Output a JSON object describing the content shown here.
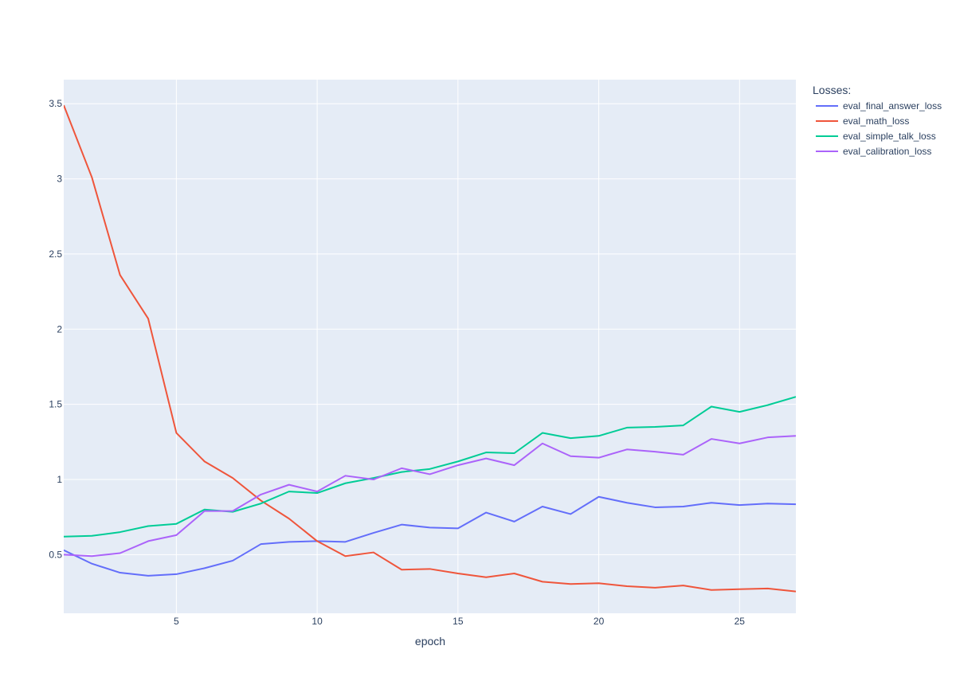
{
  "chart_data": {
    "type": "line",
    "title": "",
    "xlabel": "epoch",
    "ylabel": "",
    "legend_title": "Losses:",
    "legend_position": "right",
    "grid": true,
    "xlim": [
      1,
      27
    ],
    "ylim": [
      0.11,
      3.66
    ],
    "x_ticks": [
      5,
      10,
      15,
      20,
      25
    ],
    "x_tick_labels": [
      "5",
      "10",
      "15",
      "20",
      "25"
    ],
    "y_ticks": [
      0.5,
      1,
      1.5,
      2,
      2.5,
      3,
      3.5
    ],
    "y_tick_labels": [
      "0.5",
      "1",
      "1.5",
      "2",
      "2.5",
      "3",
      "3.5"
    ],
    "x": [
      1,
      2,
      3,
      4,
      5,
      6,
      7,
      8,
      9,
      10,
      11,
      12,
      13,
      14,
      15,
      16,
      17,
      18,
      19,
      20,
      21,
      22,
      23,
      24,
      25,
      26,
      27
    ],
    "series": [
      {
        "name": "eval_final_answer_loss",
        "color": "#636efa",
        "values": [
          0.53,
          0.44,
          0.38,
          0.36,
          0.37,
          0.41,
          0.46,
          0.57,
          0.585,
          0.59,
          0.585,
          0.645,
          0.7,
          0.68,
          0.675,
          0.78,
          0.72,
          0.82,
          0.77,
          0.885,
          0.845,
          0.815,
          0.82,
          0.845,
          0.83,
          0.84,
          0.835
        ]
      },
      {
        "name": "eval_math_loss",
        "color": "#ef553b",
        "values": [
          3.49,
          3.01,
          2.36,
          2.07,
          1.31,
          1.12,
          1.01,
          0.86,
          0.74,
          0.59,
          0.49,
          0.515,
          0.4,
          0.405,
          0.375,
          0.35,
          0.375,
          0.32,
          0.305,
          0.31,
          0.29,
          0.28,
          0.295,
          0.265,
          0.27,
          0.275,
          0.255
        ]
      },
      {
        "name": "eval_simple_talk_loss",
        "color": "#00cc96",
        "values": [
          0.62,
          0.625,
          0.65,
          0.69,
          0.705,
          0.8,
          0.785,
          0.84,
          0.92,
          0.91,
          0.975,
          1.01,
          1.05,
          1.07,
          1.12,
          1.18,
          1.175,
          1.31,
          1.275,
          1.29,
          1.345,
          1.35,
          1.36,
          1.485,
          1.45,
          1.495,
          1.55
        ]
      },
      {
        "name": "eval_calibration_loss",
        "color": "#ab63fa",
        "values": [
          0.5,
          0.49,
          0.51,
          0.59,
          0.63,
          0.79,
          0.79,
          0.9,
          0.965,
          0.92,
          1.025,
          1.0,
          1.075,
          1.035,
          1.095,
          1.14,
          1.095,
          1.24,
          1.155,
          1.145,
          1.2,
          1.185,
          1.165,
          1.27,
          1.24,
          1.28,
          1.29
        ]
      }
    ],
    "colors": {
      "plot_background": "#e5ecf6",
      "grid": "#ffffff",
      "text": "#2a3f5f"
    }
  }
}
